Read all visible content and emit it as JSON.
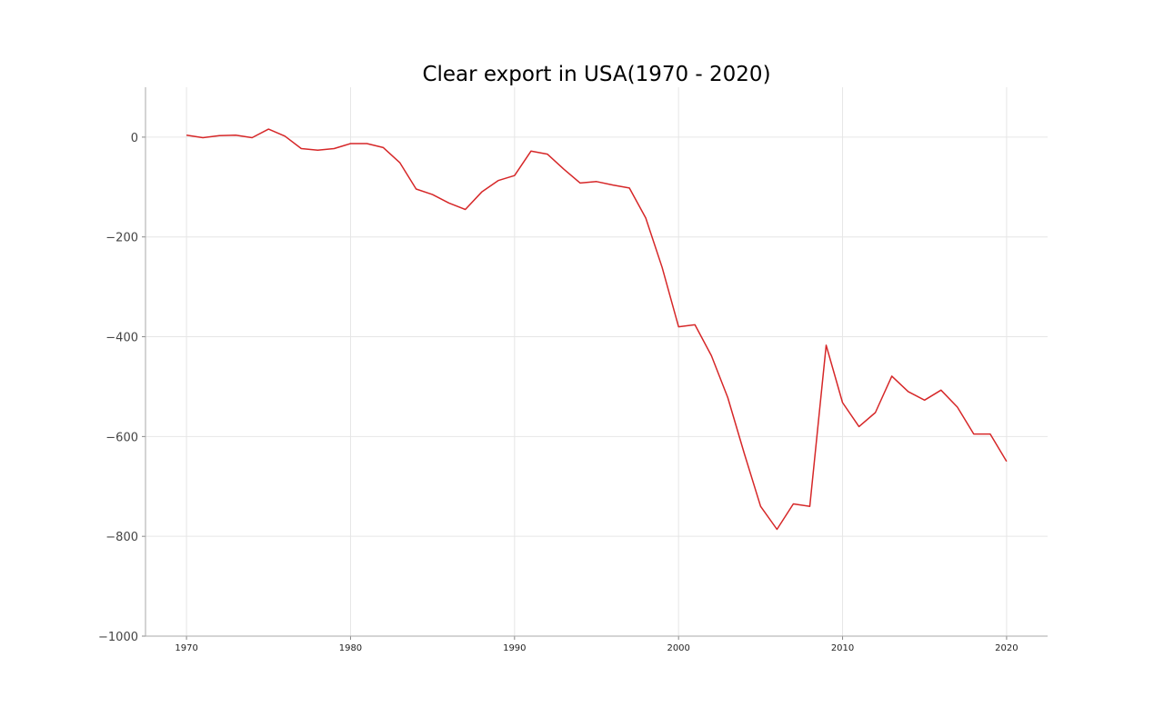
{
  "chart_data": {
    "type": "line",
    "title": "Clear export in USA(1970 - 2020)",
    "xlabel": "",
    "ylabel": "",
    "xlim": [
      1967.5,
      2022.5
    ],
    "ylim": [
      -1000,
      100
    ],
    "xticks": [
      1970,
      1980,
      1990,
      2000,
      2010,
      2020
    ],
    "yticks": [
      0,
      -200,
      -400,
      -600,
      -800,
      -1000
    ],
    "ytick_labels": [
      "0",
      "−200",
      "−400",
      "−600",
      "−800",
      "−1000"
    ],
    "grid": true,
    "line_color": "#d62728",
    "series": [
      {
        "x": [
          1970,
          1971,
          1972,
          1973,
          1974,
          1975,
          1976,
          1977,
          1978,
          1979,
          1980,
          1981,
          1982,
          1983,
          1984,
          1985,
          1986,
          1987,
          1988,
          1989,
          1990,
          1991,
          1992,
          1993,
          1994,
          1995,
          1996,
          1997,
          1998,
          1999,
          2000,
          2001,
          2002,
          2003,
          2004,
          2005,
          2006,
          2007,
          2008,
          2009,
          2010,
          2011,
          2012,
          2013,
          2014,
          2015,
          2016,
          2017,
          2018,
          2019,
          2020
        ],
        "values": [
          4,
          -1,
          3,
          4,
          -1,
          16,
          2,
          -23,
          -26,
          -23,
          -13,
          -13,
          -21,
          -51,
          -104,
          -115,
          -132,
          -145,
          -110,
          -87,
          -77,
          -28,
          -34,
          -64,
          -92,
          -89,
          -96,
          -102,
          -162,
          -261,
          -380,
          -376,
          -438,
          -522,
          -633,
          -740,
          -786,
          -735,
          -740,
          -417,
          -532,
          -580,
          -552,
          -479,
          -510,
          -527,
          -507,
          -541,
          -595,
          -595,
          -650
        ]
      }
    ]
  }
}
